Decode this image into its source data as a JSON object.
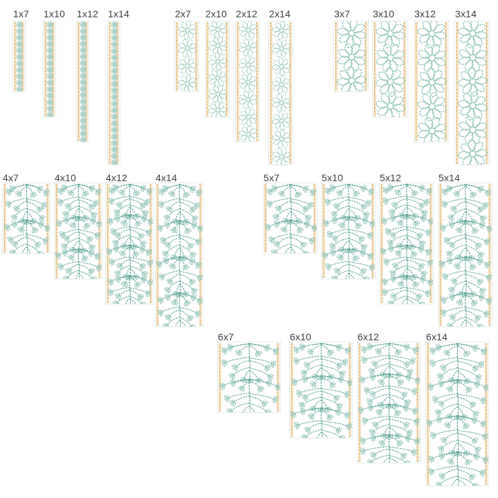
{
  "page": {
    "background": "#ffffff",
    "description": "Embroidery border design size chart"
  },
  "colors": {
    "pattern_light": "#8fc4b8",
    "pattern_dark": "#5aa496",
    "trefoil_fill": "rgba(143,196,184,0.25)",
    "guide_band": "#f5e4c4",
    "guide_line": "#ddad72",
    "strip_border": "#c9ded8",
    "label": "#3d3d3d"
  },
  "groups": [
    {
      "name": "size-group-1",
      "pattern": "daisy",
      "items": [
        {
          "label": "1x7",
          "width_units": 1,
          "height_units": 7
        },
        {
          "label": "1x10",
          "width_units": 1,
          "height_units": 10
        },
        {
          "label": "1x12",
          "width_units": 1,
          "height_units": 12
        },
        {
          "label": "1x14",
          "width_units": 1,
          "height_units": 14
        }
      ]
    },
    {
      "name": "size-group-2",
      "pattern": "daisy",
      "items": [
        {
          "label": "2x7",
          "width_units": 2,
          "height_units": 7
        },
        {
          "label": "2x10",
          "width_units": 2,
          "height_units": 10
        },
        {
          "label": "2x12",
          "width_units": 2,
          "height_units": 12
        },
        {
          "label": "2x14",
          "width_units": 2,
          "height_units": 14
        }
      ]
    },
    {
      "name": "size-group-3",
      "pattern": "daisy",
      "items": [
        {
          "label": "3x7",
          "width_units": 3,
          "height_units": 7
        },
        {
          "label": "3x10",
          "width_units": 3,
          "height_units": 10
        },
        {
          "label": "3x12",
          "width_units": 3,
          "height_units": 12
        },
        {
          "label": "3x14",
          "width_units": 3,
          "height_units": 14
        }
      ]
    },
    {
      "name": "size-group-4",
      "pattern": "vine",
      "items": [
        {
          "label": "4x7",
          "width_units": 4,
          "height_units": 7
        },
        {
          "label": "4x10",
          "width_units": 4,
          "height_units": 10
        },
        {
          "label": "4x12",
          "width_units": 4,
          "height_units": 12
        },
        {
          "label": "4x14",
          "width_units": 4,
          "height_units": 14
        }
      ]
    },
    {
      "name": "size-group-5",
      "pattern": "vine",
      "items": [
        {
          "label": "5x7",
          "width_units": 5,
          "height_units": 7
        },
        {
          "label": "5x10",
          "width_units": 5,
          "height_units": 10
        },
        {
          "label": "5x12",
          "width_units": 5,
          "height_units": 12
        },
        {
          "label": "5x14",
          "width_units": 5,
          "height_units": 14
        }
      ]
    },
    {
      "name": "size-group-6",
      "pattern": "vine",
      "items": [
        {
          "label": "6x7",
          "width_units": 6,
          "height_units": 7
        },
        {
          "label": "6x10",
          "width_units": 6,
          "height_units": 10
        },
        {
          "label": "6x12",
          "width_units": 6,
          "height_units": 12
        },
        {
          "label": "6x14",
          "width_units": 6,
          "height_units": 14
        }
      ]
    }
  ]
}
